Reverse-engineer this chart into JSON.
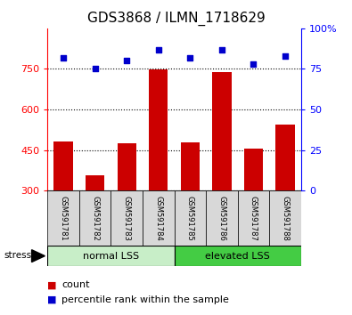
{
  "title": "GDS3868 / ILMN_1718629",
  "samples": [
    "GSM591781",
    "GSM591782",
    "GSM591783",
    "GSM591784",
    "GSM591785",
    "GSM591786",
    "GSM591787",
    "GSM591788"
  ],
  "counts": [
    480,
    355,
    475,
    748,
    478,
    738,
    455,
    545
  ],
  "percentiles": [
    82,
    75,
    80,
    87,
    82,
    87,
    78,
    83
  ],
  "ylim_left": [
    300,
    900
  ],
  "ylim_right": [
    0,
    100
  ],
  "yticks_left": [
    300,
    450,
    600,
    750
  ],
  "yticks_right": [
    0,
    25,
    50,
    75,
    100
  ],
  "bar_color": "#CC0000",
  "dot_color": "#0000CC",
  "group_band_normal": "#c8eec8",
  "group_band_elevated": "#44cc44",
  "title_fontsize": 11,
  "tick_fontsize": 8,
  "label_fontsize": 6,
  "legend_fontsize": 8,
  "group_fontsize": 8
}
